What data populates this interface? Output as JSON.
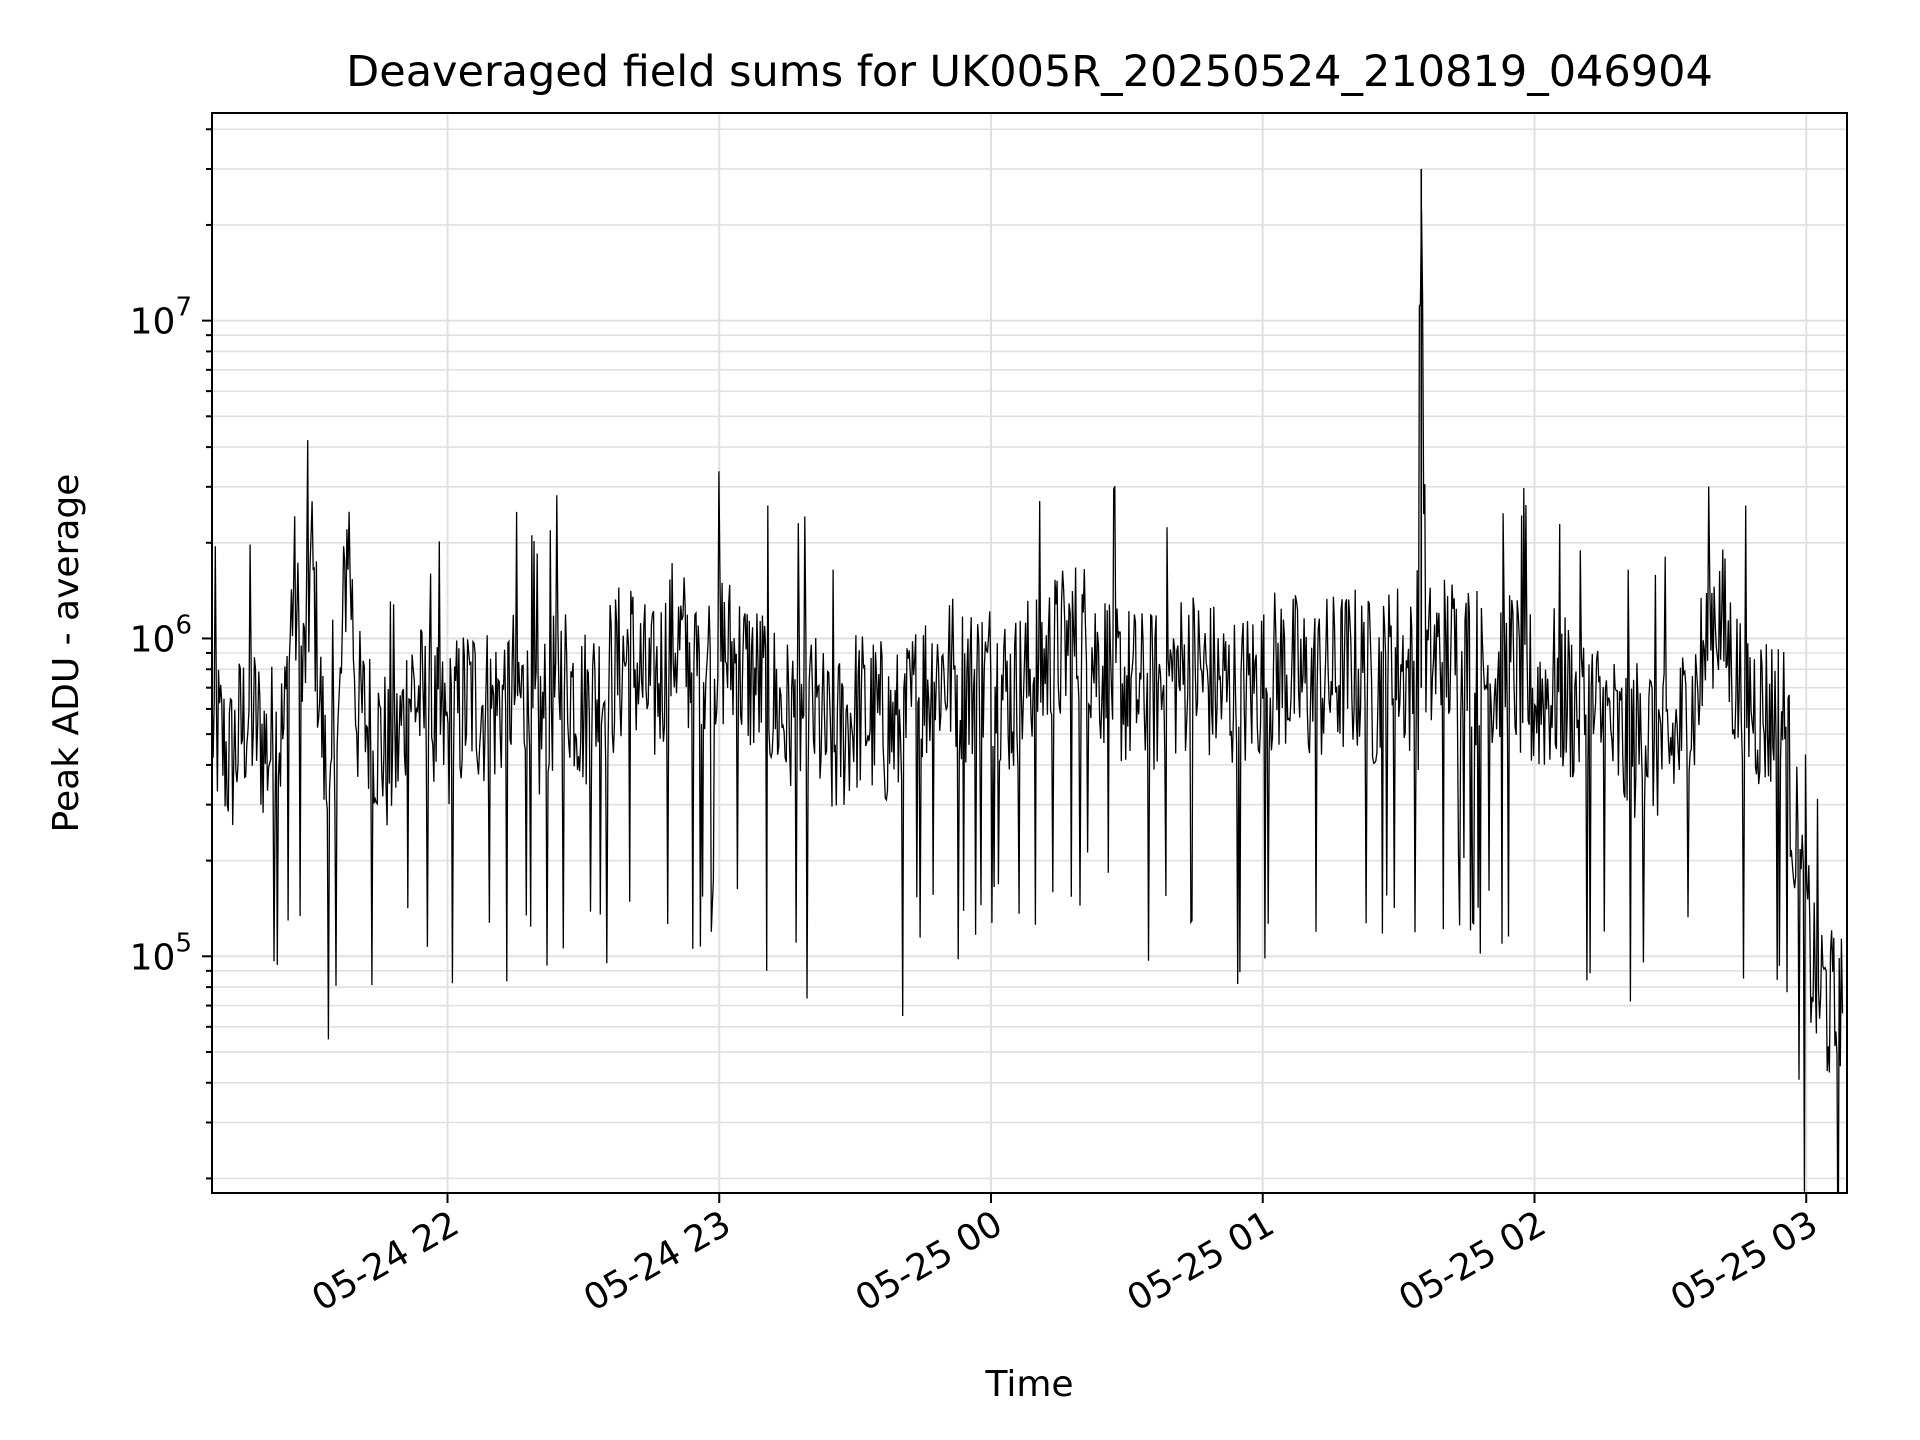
{
  "chart_data": {
    "type": "line",
    "title": "Deaveraged field sums for UK005R_20250524_210819_046904",
    "xlabel": "Time",
    "ylabel": "Peak ADU - average",
    "x_scale": "time",
    "y_scale": "log",
    "xlim": [
      "2025-05-24 21:08",
      "2025-05-25 03:09"
    ],
    "ylim": [
      18000,
      45000000
    ],
    "x_ticks": [
      {
        "label": "05-24 22",
        "value": "2025-05-24 22:00"
      },
      {
        "label": "05-24 23",
        "value": "2025-05-24 23:00"
      },
      {
        "label": "05-25 00",
        "value": "2025-05-25 00:00"
      },
      {
        "label": "05-25 01",
        "value": "2025-05-25 01:00"
      },
      {
        "label": "05-25 02",
        "value": "2025-05-25 02:00"
      },
      {
        "label": "05-25 03",
        "value": "2025-05-25 03:00"
      }
    ],
    "y_ticks": [
      {
        "base": "10",
        "exp": "5",
        "value": 100000
      },
      {
        "base": "10",
        "exp": "6",
        "value": 1000000
      },
      {
        "base": "10",
        "exp": "7",
        "value": 10000000
      }
    ],
    "grid": true,
    "line_color": "#000000",
    "grid_color": "#e0e0e0",
    "series": [
      {
        "x": [
          "2025-05-24 21:08",
          "2025-05-24 21:12",
          "2025-05-24 21:16",
          "2025-05-24 21:20",
          "2025-05-24 21:24",
          "2025-05-24 21:26",
          "2025-05-24 21:28",
          "2025-05-24 21:30",
          "2025-05-24 21:32",
          "2025-05-24 21:34",
          "2025-05-24 21:36",
          "2025-05-24 21:38",
          "2025-05-24 21:40",
          "2025-05-24 21:44",
          "2025-05-24 21:48",
          "2025-05-24 21:52",
          "2025-05-24 21:56",
          "2025-05-24 22:00",
          "2025-05-24 22:05",
          "2025-05-24 22:10",
          "2025-05-24 22:15",
          "2025-05-24 22:20",
          "2025-05-24 22:25",
          "2025-05-24 22:30",
          "2025-05-24 22:35",
          "2025-05-24 22:40",
          "2025-05-24 22:45",
          "2025-05-24 22:50",
          "2025-05-24 22:55",
          "2025-05-24 23:00",
          "2025-05-24 23:05",
          "2025-05-24 23:10",
          "2025-05-24 23:15",
          "2025-05-24 23:20",
          "2025-05-24 23:25",
          "2025-05-24 23:30",
          "2025-05-24 23:35",
          "2025-05-24 23:40",
          "2025-05-24 23:45",
          "2025-05-24 23:50",
          "2025-05-24 23:55",
          "2025-05-25 00:00",
          "2025-05-25 00:05",
          "2025-05-25 00:10",
          "2025-05-25 00:15",
          "2025-05-25 00:20",
          "2025-05-25 00:25",
          "2025-05-25 00:30",
          "2025-05-25 00:35",
          "2025-05-25 00:40",
          "2025-05-25 00:45",
          "2025-05-25 00:50",
          "2025-05-25 00:55",
          "2025-05-25 01:00",
          "2025-05-25 01:05",
          "2025-05-25 01:10",
          "2025-05-25 01:15",
          "2025-05-25 01:20",
          "2025-05-25 01:25",
          "2025-05-25 01:30",
          "2025-05-25 01:34",
          "2025-05-25 01:35",
          "2025-05-25 01:36",
          "2025-05-25 01:40",
          "2025-05-25 01:45",
          "2025-05-25 01:50",
          "2025-05-25 01:55",
          "2025-05-25 02:00",
          "2025-05-25 02:05",
          "2025-05-25 02:10",
          "2025-05-25 02:15",
          "2025-05-25 02:20",
          "2025-05-25 02:25",
          "2025-05-25 02:30",
          "2025-05-25 02:35",
          "2025-05-25 02:40",
          "2025-05-25 02:45",
          "2025-05-25 02:50",
          "2025-05-25 02:55",
          "2025-05-25 02:57",
          "2025-05-25 02:59",
          "2025-05-25 03:01",
          "2025-05-25 03:03",
          "2025-05-25 03:05",
          "2025-05-25 03:07",
          "2025-05-25 03:08"
        ],
        "y": [
          550000,
          400000,
          600000,
          450000,
          500000,
          1500000,
          700000,
          1800000,
          600000,
          250000,
          500000,
          2400000,
          600000,
          500000,
          400000,
          700000,
          550000,
          500000,
          650000,
          600000,
          700000,
          500000,
          800000,
          600000,
          700000,
          900000,
          650000,
          1000000,
          800000,
          950000,
          800000,
          700000,
          550000,
          600000,
          450000,
          600000,
          550000,
          500000,
          700000,
          800000,
          700000,
          750000,
          650000,
          800000,
          900000,
          1000000,
          800000,
          700000,
          650000,
          750000,
          800000,
          700000,
          650000,
          750000,
          800000,
          700000,
          750000,
          800000,
          700000,
          850000,
          700000,
          30000000,
          800000,
          900000,
          850000,
          750000,
          800000,
          650000,
          700000,
          600000,
          550000,
          450000,
          500000,
          450000,
          600000,
          1300000,
          700000,
          600000,
          550000,
          300000,
          150000,
          100000,
          80000,
          70000,
          60000,
          100000
        ]
      }
    ]
  }
}
